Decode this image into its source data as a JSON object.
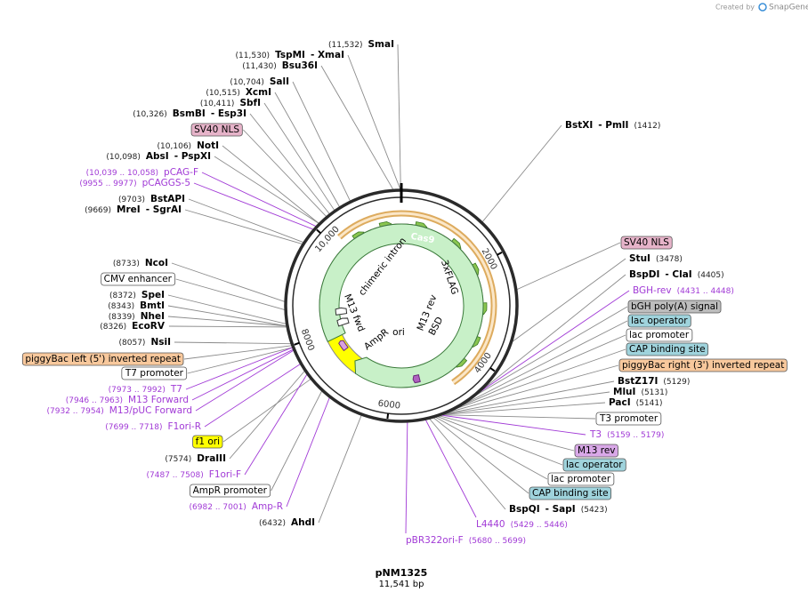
{
  "header": {
    "created_by": "Created by",
    "brand": "SnapGene"
  },
  "plasmid": {
    "name": "pNM1325",
    "length": "11,541 bp"
  },
  "ring_labels": [
    "2000",
    "4000",
    "6000",
    "8000",
    "10,000"
  ],
  "inner_features": {
    "cas9": "Cas9",
    "intron": "chimeric intron",
    "flag": "3xFLAG",
    "m13rev": "M13 rev",
    "bsd": "BSD",
    "ori": "ori",
    "ampr": "AmpR",
    "m13fwd": "M13 fwd"
  },
  "left_labels": [
    {
      "kind": "enzyme",
      "pos": "(11,532)",
      "name": "SmaI"
    },
    {
      "kind": "enzyme",
      "pos": "(11,530)",
      "name": "TspMI",
      "name2": "- XmaI"
    },
    {
      "kind": "enzyme",
      "pos": "(11,430)",
      "name": "Bsu36I"
    },
    {
      "kind": "enzyme",
      "pos": "(10,704)",
      "name": "SalI"
    },
    {
      "kind": "enzyme",
      "pos": "(10,515)",
      "name": "XcmI"
    },
    {
      "kind": "enzyme",
      "pos": "(10,411)",
      "name": "SbfI"
    },
    {
      "kind": "enzyme",
      "pos": "(10,326)",
      "name": "BsmBI",
      "name2": "- Esp3I"
    },
    {
      "kind": "feature",
      "name": "SV40 NLS",
      "color": "#e6b3c9"
    },
    {
      "kind": "enzyme",
      "pos": "(10,106)",
      "name": "NotI"
    },
    {
      "kind": "enzyme",
      "pos": "(10,098)",
      "name": "AbsI",
      "name2": "- PspXI"
    },
    {
      "kind": "primer",
      "pos": "(10,039 .. 10,058)",
      "name": "pCAG-F"
    },
    {
      "kind": "primer",
      "pos": "(9955 .. 9977)",
      "name": "pCAGGS-5"
    },
    {
      "kind": "enzyme",
      "pos": "(9703)",
      "name": "BstAPI"
    },
    {
      "kind": "enzyme",
      "pos": "(9669)",
      "name": "MreI",
      "name2": "- SgrAI"
    },
    {
      "kind": "enzyme",
      "pos": "(8733)",
      "name": "NcoI"
    },
    {
      "kind": "feature",
      "name": "CMV enhancer",
      "color": "#ffffff"
    },
    {
      "kind": "enzyme",
      "pos": "(8372)",
      "name": "SpeI"
    },
    {
      "kind": "enzyme",
      "pos": "(8343)",
      "name": "BmtI"
    },
    {
      "kind": "enzyme",
      "pos": "(8339)",
      "name": "NheI"
    },
    {
      "kind": "enzyme",
      "pos": "(8326)",
      "name": "EcoRV"
    },
    {
      "kind": "enzyme",
      "pos": "(8057)",
      "name": "NsiI"
    },
    {
      "kind": "feature",
      "name": "piggyBac left (5') inverted repeat",
      "color": "#f8c89c"
    },
    {
      "kind": "feature",
      "name": "T7 promoter",
      "color": "#ffffff"
    },
    {
      "kind": "primer",
      "pos": "(7973 .. 7992)",
      "name": "T7"
    },
    {
      "kind": "primer",
      "pos": "(7946 .. 7963)",
      "name": "M13 Forward"
    },
    {
      "kind": "primer",
      "pos": "(7932 .. 7954)",
      "name": "M13/pUC Forward"
    },
    {
      "kind": "primer",
      "pos": "(7699 .. 7718)",
      "name": "F1ori-R"
    },
    {
      "kind": "feature",
      "name": "f1 ori",
      "color": "#ffff00"
    },
    {
      "kind": "enzyme",
      "pos": "(7574)",
      "name": "DraIII"
    },
    {
      "kind": "primer",
      "pos": "(7487 .. 7508)",
      "name": "F1ori-F"
    },
    {
      "kind": "feature",
      "name": "AmpR promoter",
      "color": "#ffffff"
    },
    {
      "kind": "primer",
      "pos": "(6982 .. 7001)",
      "name": "Amp-R"
    },
    {
      "kind": "enzyme",
      "pos": "(6432)",
      "name": "AhdI"
    }
  ],
  "right_labels": [
    {
      "kind": "enzyme",
      "name": "BstXI",
      "name2": "- PmlI",
      "pos": "(1412)"
    },
    {
      "kind": "feature",
      "name": "SV40 NLS",
      "color": "#e6b3c9"
    },
    {
      "kind": "enzyme",
      "name": "StuI",
      "pos": "(3478)"
    },
    {
      "kind": "enzyme",
      "name": "BspDI",
      "name2": "- ClaI",
      "pos": "(4405)"
    },
    {
      "kind": "primer",
      "name": "BGH-rev",
      "pos": "(4431 .. 4448)"
    },
    {
      "kind": "feature",
      "name": "bGH poly(A) signal",
      "color": "#bdbdbd"
    },
    {
      "kind": "feature",
      "name": "lac operator",
      "color": "#9fd3dc"
    },
    {
      "kind": "feature",
      "name": "lac promoter",
      "color": "#ffffff"
    },
    {
      "kind": "feature",
      "name": "CAP binding site",
      "color": "#9fd3dc"
    },
    {
      "kind": "feature",
      "name": "piggyBac right (3') inverted repeat",
      "color": "#f8c89c"
    },
    {
      "kind": "enzyme",
      "name": "BstZ17I",
      "pos": "(5129)"
    },
    {
      "kind": "enzyme",
      "name": "MluI",
      "pos": "(5131)"
    },
    {
      "kind": "enzyme",
      "name": "PacI",
      "pos": "(5141)"
    },
    {
      "kind": "feature",
      "name": "T3 promoter",
      "color": "#ffffff"
    },
    {
      "kind": "primer",
      "name": "T3",
      "pos": "(5159 .. 5179)"
    },
    {
      "kind": "feature",
      "name": "M13 rev",
      "color": "#d9a8e8"
    },
    {
      "kind": "feature",
      "name": "lac operator",
      "color": "#9fd3dc"
    },
    {
      "kind": "feature",
      "name": "lac promoter",
      "color": "#ffffff"
    },
    {
      "kind": "feature",
      "name": "CAP binding site",
      "color": "#9fd3dc"
    },
    {
      "kind": "enzyme",
      "name": "BspQI",
      "name2": "- SapI",
      "pos": "(5423)"
    },
    {
      "kind": "primer",
      "name": "L4440",
      "pos": "(5429 .. 5446)"
    },
    {
      "kind": "primer",
      "name": "pBR322ori-F",
      "pos": "(5680 .. 5699)"
    }
  ]
}
